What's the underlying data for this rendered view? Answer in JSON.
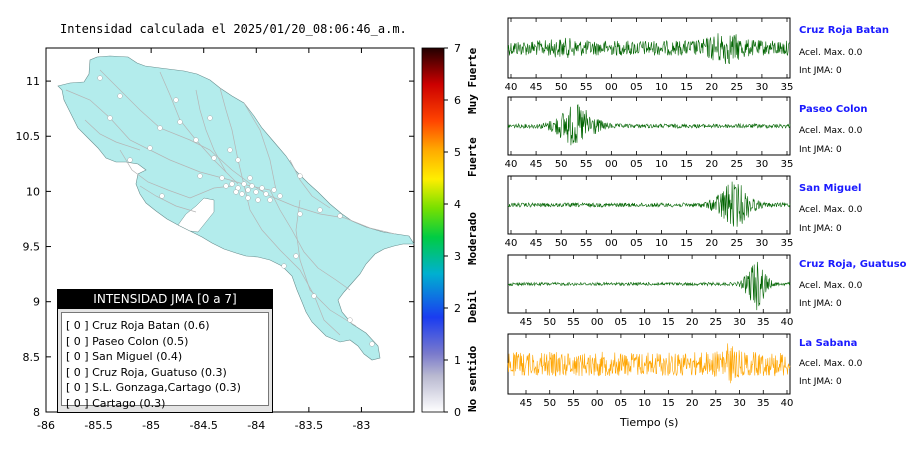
{
  "map": {
    "title": "Intensidad calculada el 2025/01/20_08:06:46_a.m.",
    "x_ticks": [
      "-86",
      "-85.5",
      "-85",
      "-84.5",
      "-84",
      "-83.5",
      "-83"
    ],
    "y_ticks": [
      "11",
      "10.5",
      "10",
      "9.5",
      "9",
      "8.5",
      "8"
    ],
    "xlim": [
      -86,
      -82.5
    ],
    "ylim": [
      8,
      11.3
    ],
    "land_color": "#b3ecec",
    "road_color": "#b5b5b5",
    "station_color": "#ffffff"
  },
  "legend": {
    "title": "INTENSIDAD JMA [0 a 7]",
    "items": [
      "[ 0 ]  Cruz Roja Batan (0.6)",
      "[ 0 ]  Paseo Colon (0.5)",
      "[ 0 ]  San Miguel (0.4)",
      "[ 0 ]  Cruz Roja, Guatuso (0.3)",
      "[ 0 ]  S.L. Gonzaga,Cartago (0.3)",
      "[ 0 ]  Cartago (0.3)"
    ]
  },
  "colorbar": {
    "ticks": [
      "0",
      "1",
      "2",
      "3",
      "4",
      "5",
      "6",
      "7"
    ],
    "words": [
      "No sentido",
      "Debil",
      "Moderado",
      "Fuerte",
      "Muy Fuerte"
    ],
    "range": [
      0,
      7
    ]
  },
  "waveforms": {
    "xlabel": "Tiempo (s)",
    "panels": [
      {
        "station": "Cruz Roja Batan",
        "accel": "Acel. Max. 0.0",
        "jma": "Int JMA: 0",
        "ticks": [
          "40",
          "45",
          "50",
          "55",
          "00",
          "05",
          "10",
          "15",
          "20",
          "25",
          "30",
          "35"
        ],
        "color": "#006400"
      },
      {
        "station": "Paseo Colon",
        "accel": "Acel. Max. 0.0",
        "jma": "Int JMA: 0",
        "ticks": [
          "40",
          "45",
          "50",
          "55",
          "00",
          "05",
          "10",
          "15",
          "20",
          "25",
          "30",
          "35"
        ],
        "color": "#006400"
      },
      {
        "station": "San Miguel",
        "accel": "Acel. Max. 0.0",
        "jma": "Int JMA: 0",
        "ticks": [
          "40",
          "45",
          "50",
          "55",
          "00",
          "05",
          "10",
          "15",
          "20",
          "25",
          "30",
          "35"
        ],
        "color": "#006400"
      },
      {
        "station": "Cruz Roja, Guatuso",
        "accel": "Acel. Max. 0.0",
        "jma": "Int JMA: 0",
        "ticks": [
          "45",
          "50",
          "55",
          "00",
          "05",
          "10",
          "15",
          "20",
          "25",
          "30",
          "35",
          "40"
        ],
        "color": "#006400"
      },
      {
        "station": "La Sabana",
        "accel": "Acel. Max. 0.0",
        "jma": "Int JMA: 0",
        "ticks": [
          "45",
          "50",
          "55",
          "00",
          "05",
          "10",
          "15",
          "20",
          "25",
          "30",
          "35",
          "40"
        ],
        "color": "#ffa500"
      }
    ]
  },
  "chart_data": [
    {
      "type": "scatter",
      "title": "Intensidad calculada el 2025/01/20_08:06:46_a.m.",
      "xlabel": "",
      "ylabel": "",
      "xlim": [
        -86,
        -82.5
      ],
      "ylim": [
        8,
        11.3
      ],
      "grid": false,
      "legend_placement": "bottom-left",
      "series": [
        {
          "name": "INTENSIDAD JMA [0 a 7]",
          "points": [
            {
              "label": "Cruz Roja Batan",
              "jma": 0,
              "value": 0.6
            },
            {
              "label": "Paseo Colon",
              "jma": 0,
              "value": 0.5
            },
            {
              "label": "San Miguel",
              "jma": 0,
              "value": 0.4
            },
            {
              "label": "Cruz Roja, Guatuso",
              "jma": 0,
              "value": 0.3
            },
            {
              "label": "S.L. Gonzaga,Cartago",
              "jma": 0,
              "value": 0.3
            },
            {
              "label": "Cartago",
              "jma": 0,
              "value": 0.3
            }
          ]
        }
      ],
      "colorbar_range": [
        0,
        7
      ]
    },
    {
      "type": "line",
      "title": "",
      "xlabel": "Tiempo (s)",
      "ylabel": "",
      "series": [
        {
          "name": "Cruz Roja Batan",
          "acel_max": 0.0,
          "int_jma": 0
        },
        {
          "name": "Paseo Colon",
          "acel_max": 0.0,
          "int_jma": 0
        },
        {
          "name": "San Miguel",
          "acel_max": 0.0,
          "int_jma": 0
        },
        {
          "name": "Cruz Roja, Guatuso",
          "acel_max": 0.0,
          "int_jma": 0
        },
        {
          "name": "La Sabana",
          "acel_max": 0.0,
          "int_jma": 0
        }
      ]
    }
  ]
}
